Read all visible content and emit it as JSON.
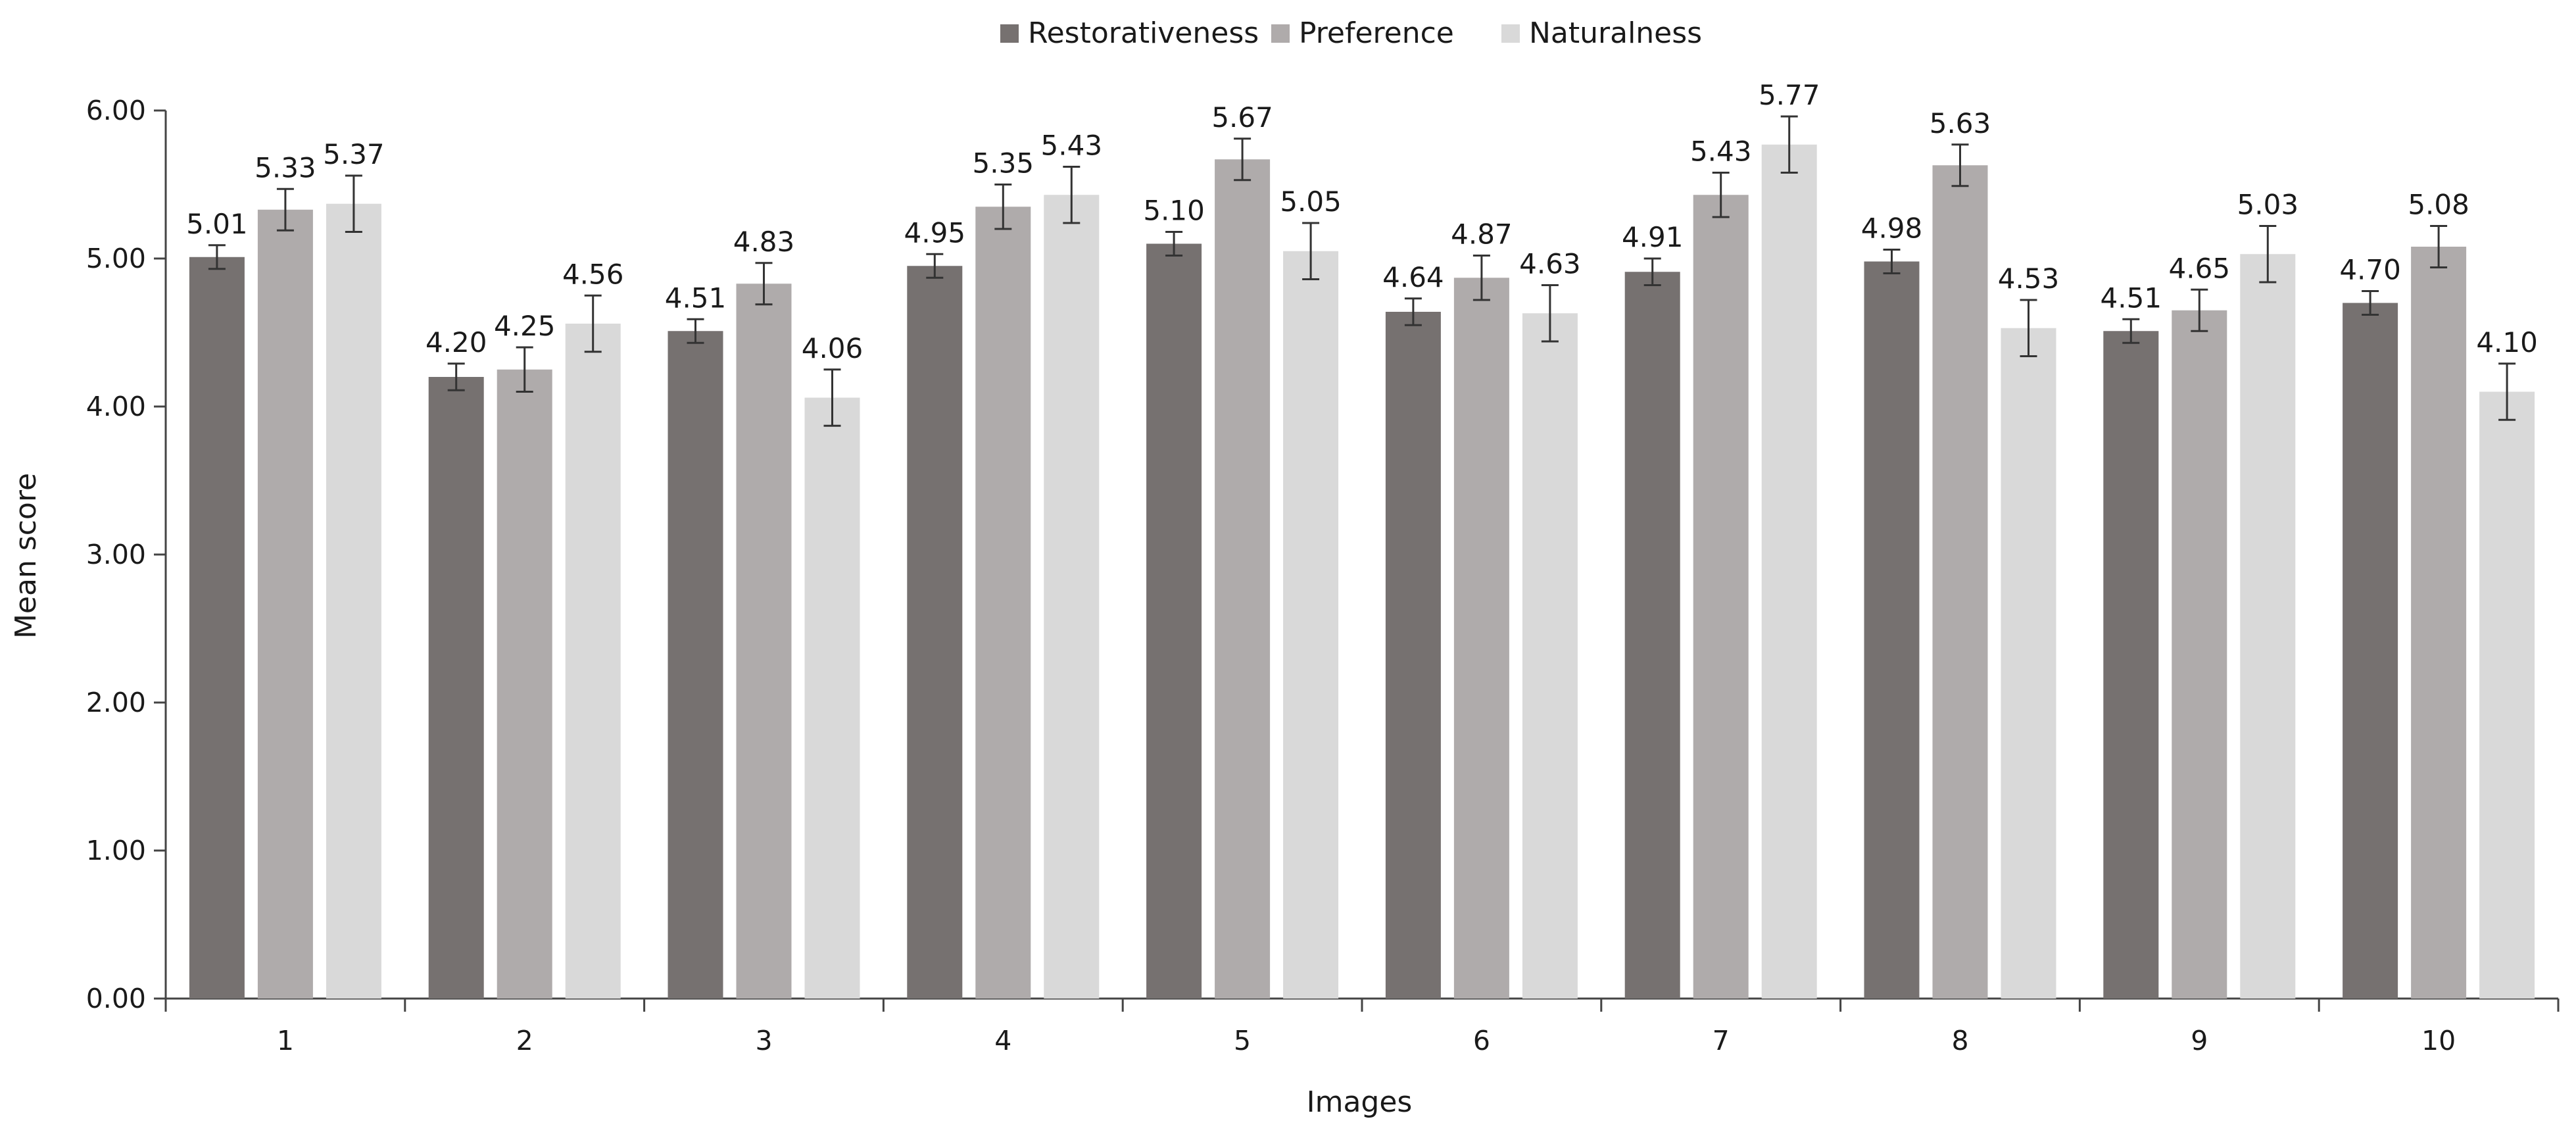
{
  "chart_data": {
    "type": "bar",
    "xlabel": "Images",
    "ylabel": "Mean score",
    "ylim": [
      0,
      6
    ],
    "yticks": [
      "0.00",
      "1.00",
      "2.00",
      "3.00",
      "4.00",
      "5.00",
      "6.00"
    ],
    "grid": false,
    "legend_position": "top-center",
    "categories": [
      "1",
      "2",
      "3",
      "4",
      "5",
      "6",
      "7",
      "8",
      "9",
      "10"
    ],
    "series": [
      {
        "name": "Restorativeness",
        "color": "#767170",
        "values": [
          5.01,
          4.2,
          4.51,
          4.95,
          5.1,
          4.64,
          4.91,
          4.98,
          4.51,
          4.7
        ],
        "labels": [
          "5.01",
          "4.20",
          "4.51",
          "4.95",
          "5.10",
          "4.64",
          "4.91",
          "4.98",
          "4.51",
          "4.70"
        ],
        "errors": [
          0.08,
          0.09,
          0.08,
          0.08,
          0.08,
          0.09,
          0.09,
          0.08,
          0.08,
          0.08
        ]
      },
      {
        "name": "Preference",
        "color": "#afabab",
        "values": [
          5.33,
          4.25,
          4.83,
          5.35,
          5.67,
          4.87,
          5.43,
          5.63,
          4.65,
          5.08
        ],
        "labels": [
          "5.33",
          "4.25",
          "4.83",
          "5.35",
          "5.67",
          "4.87",
          "5.43",
          "5.63",
          "4.65",
          "5.08"
        ],
        "errors": [
          0.14,
          0.15,
          0.14,
          0.15,
          0.14,
          0.15,
          0.15,
          0.14,
          0.14,
          0.14
        ]
      },
      {
        "name": "Naturalness",
        "color": "#d9d9d9",
        "values": [
          5.37,
          4.56,
          4.06,
          5.43,
          5.05,
          4.63,
          5.77,
          4.53,
          5.03,
          4.1
        ],
        "labels": [
          "5.37",
          "4.56",
          "4.06",
          "5.43",
          "5.05",
          "4.63",
          "5.77",
          "4.53",
          "5.03",
          "4.10"
        ],
        "errors": [
          0.19,
          0.19,
          0.19,
          0.19,
          0.19,
          0.19,
          0.19,
          0.19,
          0.19,
          0.19
        ]
      }
    ]
  }
}
